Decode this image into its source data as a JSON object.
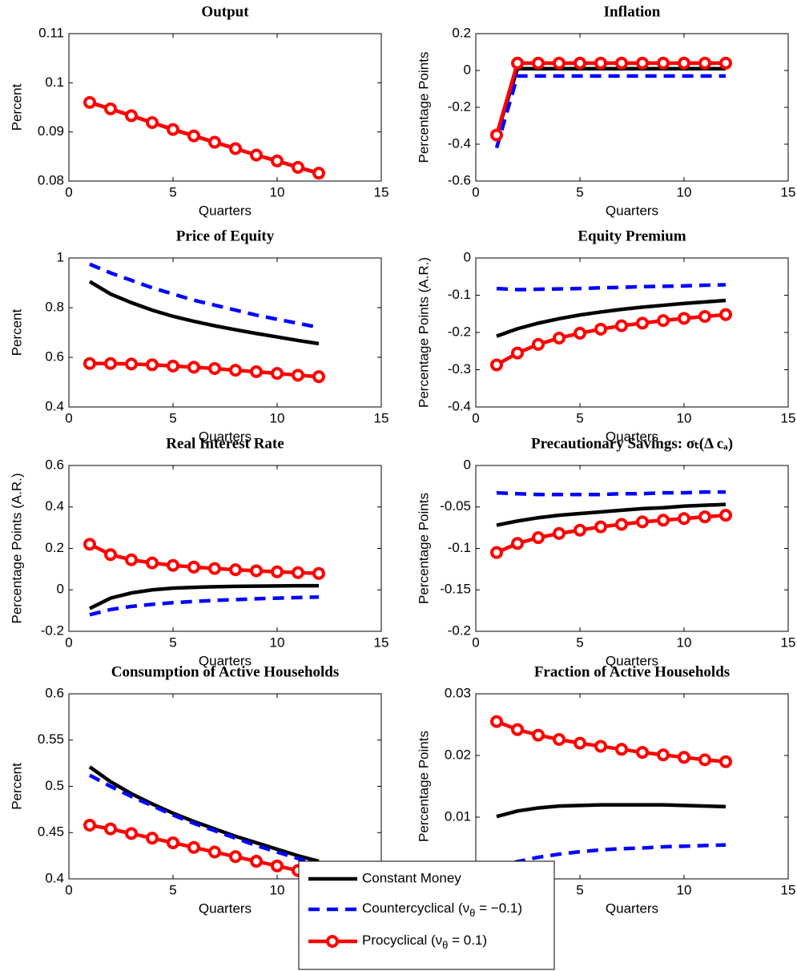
{
  "chart_data": [
    {
      "type": "line",
      "title": "Output",
      "ylabel": "Percent",
      "xlabel": "Quarters",
      "x": [
        1,
        2,
        3,
        4,
        5,
        6,
        7,
        8,
        9,
        10,
        11,
        12
      ],
      "xlim": [
        0,
        15
      ],
      "xticks": [
        0,
        5,
        10,
        15
      ],
      "ylim": [
        0.08,
        0.11
      ],
      "yticks": [
        0.08,
        0.09,
        0.1,
        0.11
      ],
      "series": [
        {
          "values": [
            0.096,
            0.0947,
            0.0933,
            0.0919,
            0.0905,
            0.0892,
            0.0879,
            0.0866,
            0.0853,
            0.0841,
            0.0828,
            0.0816
          ]
        },
        {
          "values": [
            0.096,
            0.0947,
            0.0933,
            0.0919,
            0.0905,
            0.0892,
            0.0879,
            0.0866,
            0.0853,
            0.0841,
            0.0828,
            0.0816
          ]
        },
        {
          "values": [
            0.096,
            0.0947,
            0.0933,
            0.0919,
            0.0905,
            0.0892,
            0.0879,
            0.0866,
            0.0853,
            0.0841,
            0.0828,
            0.0816
          ]
        }
      ]
    },
    {
      "type": "line",
      "title": "Inflation",
      "ylabel": "Percentage Points",
      "xlabel": "Quarters",
      "x": [
        1,
        2,
        3,
        4,
        5,
        6,
        7,
        8,
        9,
        10,
        11,
        12
      ],
      "xlim": [
        0,
        15
      ],
      "xticks": [
        0,
        5,
        10,
        15
      ],
      "ylim": [
        -0.6,
        0.2
      ],
      "yticks": [
        -0.6,
        -0.4,
        -0.2,
        0,
        0.2
      ],
      "series": [
        {
          "values": [
            -0.35,
            0.01,
            0.01,
            0.01,
            0.01,
            0.01,
            0.01,
            0.01,
            0.01,
            0.01,
            0.01,
            0.01
          ]
        },
        {
          "values": [
            -0.42,
            -0.03,
            -0.03,
            -0.03,
            -0.03,
            -0.03,
            -0.03,
            -0.03,
            -0.03,
            -0.03,
            -0.03,
            -0.03
          ]
        },
        {
          "values": [
            -0.35,
            0.04,
            0.04,
            0.04,
            0.04,
            0.04,
            0.04,
            0.04,
            0.04,
            0.04,
            0.04,
            0.04
          ]
        }
      ]
    },
    {
      "type": "line",
      "title": "Price of Equity",
      "ylabel": "Percent",
      "xlabel": "Quarters",
      "x": [
        1,
        2,
        3,
        4,
        5,
        6,
        7,
        8,
        9,
        10,
        11,
        12
      ],
      "xlim": [
        0,
        15
      ],
      "xticks": [
        0,
        5,
        10,
        15
      ],
      "ylim": [
        0.4,
        1
      ],
      "yticks": [
        0.4,
        0.6,
        0.8,
        1
      ],
      "series": [
        {
          "values": [
            0.905,
            0.855,
            0.82,
            0.79,
            0.765,
            0.745,
            0.727,
            0.711,
            0.696,
            0.682,
            0.668,
            0.655
          ]
        },
        {
          "values": [
            0.975,
            0.94,
            0.91,
            0.88,
            0.855,
            0.83,
            0.81,
            0.79,
            0.77,
            0.753,
            0.737,
            0.72
          ]
        },
        {
          "values": [
            0.575,
            0.575,
            0.573,
            0.57,
            0.565,
            0.56,
            0.555,
            0.548,
            0.542,
            0.535,
            0.528,
            0.522
          ]
        }
      ]
    },
    {
      "type": "line",
      "title": "Equity Premium",
      "ylabel": "Percentage Points (A.R.)",
      "xlabel": "Quarters",
      "x": [
        1,
        2,
        3,
        4,
        5,
        6,
        7,
        8,
        9,
        10,
        11,
        12
      ],
      "xlim": [
        0,
        15
      ],
      "xticks": [
        0,
        5,
        10,
        15
      ],
      "ylim": [
        -0.4,
        0
      ],
      "yticks": [
        -0.4,
        -0.3,
        -0.2,
        -0.1,
        0
      ],
      "series": [
        {
          "values": [
            -0.21,
            -0.19,
            -0.175,
            -0.163,
            -0.153,
            -0.145,
            -0.138,
            -0.132,
            -0.127,
            -0.122,
            -0.118,
            -0.114
          ]
        },
        {
          "values": [
            -0.082,
            -0.085,
            -0.084,
            -0.083,
            -0.082,
            -0.08,
            -0.079,
            -0.077,
            -0.076,
            -0.075,
            -0.073,
            -0.072
          ]
        },
        {
          "values": [
            -0.287,
            -0.255,
            -0.232,
            -0.215,
            -0.202,
            -0.191,
            -0.182,
            -0.175,
            -0.168,
            -0.162,
            -0.157,
            -0.152
          ]
        }
      ]
    },
    {
      "type": "line",
      "title": "Real Interest Rate",
      "ylabel": "Percentage Points (A.R.)",
      "xlabel": "Quarters",
      "x": [
        1,
        2,
        3,
        4,
        5,
        6,
        7,
        8,
        9,
        10,
        11,
        12
      ],
      "xlim": [
        0,
        15
      ],
      "xticks": [
        0,
        5,
        10,
        15
      ],
      "ylim": [
        -0.2,
        0.6
      ],
      "yticks": [
        -0.2,
        0,
        0.2,
        0.4,
        0.6
      ],
      "series": [
        {
          "values": [
            -0.09,
            -0.04,
            -0.015,
            0,
            0.008,
            0.012,
            0.015,
            0.017,
            0.018,
            0.019,
            0.02,
            0.02
          ]
        },
        {
          "values": [
            -0.12,
            -0.095,
            -0.08,
            -0.07,
            -0.062,
            -0.056,
            -0.051,
            -0.047,
            -0.043,
            -0.04,
            -0.037,
            -0.035
          ]
        },
        {
          "values": [
            0.22,
            0.17,
            0.145,
            0.13,
            0.118,
            0.11,
            0.103,
            0.097,
            0.092,
            0.087,
            0.083,
            0.079
          ]
        }
      ]
    },
    {
      "type": "line",
      "title": "Precautionary Savings:  σₜ(Δ cₐ)",
      "ylabel": "Percentage Points",
      "xlabel": "Quarters",
      "x": [
        1,
        2,
        3,
        4,
        5,
        6,
        7,
        8,
        9,
        10,
        11,
        12
      ],
      "xlim": [
        0,
        15
      ],
      "xticks": [
        0,
        5,
        10,
        15
      ],
      "ylim": [
        -0.2,
        0
      ],
      "yticks": [
        -0.2,
        -0.15,
        -0.1,
        -0.05,
        0
      ],
      "series": [
        {
          "values": [
            -0.072,
            -0.067,
            -0.063,
            -0.06,
            -0.058,
            -0.056,
            -0.054,
            -0.052,
            -0.051,
            -0.049,
            -0.048,
            -0.047
          ]
        },
        {
          "values": [
            -0.033,
            -0.034,
            -0.035,
            -0.035,
            -0.035,
            -0.035,
            -0.034,
            -0.034,
            -0.033,
            -0.033,
            -0.032,
            -0.032
          ]
        },
        {
          "values": [
            -0.105,
            -0.094,
            -0.087,
            -0.082,
            -0.078,
            -0.074,
            -0.071,
            -0.068,
            -0.066,
            -0.064,
            -0.062,
            -0.06
          ]
        }
      ]
    },
    {
      "type": "line",
      "title": "Consumption of Active Households",
      "ylabel": "Percent",
      "xlabel": "Quarters",
      "x": [
        1,
        2,
        3,
        4,
        5,
        6,
        7,
        8,
        9,
        10,
        11,
        12
      ],
      "xlim": [
        0,
        15
      ],
      "xticks": [
        0,
        5,
        10,
        15
      ],
      "ylim": [
        0.4,
        0.6
      ],
      "yticks": [
        0.4,
        0.45,
        0.5,
        0.55,
        0.6
      ],
      "series": [
        {
          "values": [
            0.521,
            0.505,
            0.492,
            0.481,
            0.471,
            0.462,
            0.454,
            0.446,
            0.439,
            0.432,
            0.425,
            0.419
          ]
        },
        {
          "values": [
            0.512,
            0.5,
            0.489,
            0.479,
            0.469,
            0.46,
            0.452,
            0.444,
            0.436,
            0.429,
            0.422,
            0.415
          ]
        },
        {
          "values": [
            0.458,
            0.454,
            0.449,
            0.444,
            0.439,
            0.434,
            0.429,
            0.424,
            0.419,
            0.414,
            0.409,
            0.404
          ]
        }
      ]
    },
    {
      "type": "line",
      "title": "Fraction of Active Households",
      "ylabel": "Percentage Points",
      "xlabel": "Quarters",
      "x": [
        1,
        2,
        3,
        4,
        5,
        6,
        7,
        8,
        9,
        10,
        11,
        12
      ],
      "xlim": [
        0,
        15
      ],
      "xticks": [
        0,
        5,
        10,
        15
      ],
      "ylim": [
        0,
        0.03
      ],
      "yticks": [
        0,
        0.01,
        0.02,
        0.03
      ],
      "series": [
        {
          "values": [
            0.0101,
            0.011,
            0.0115,
            0.0118,
            0.0119,
            0.012,
            0.012,
            0.012,
            0.012,
            0.0119,
            0.0118,
            0.0117
          ]
        },
        {
          "values": [
            0.0018,
            0.0028,
            0.0035,
            0.004,
            0.0044,
            0.0047,
            0.0049,
            0.005,
            0.0052,
            0.0053,
            0.0054,
            0.0055
          ]
        },
        {
          "values": [
            0.0255,
            0.0242,
            0.0233,
            0.0226,
            0.022,
            0.0215,
            0.021,
            0.0205,
            0.0201,
            0.0197,
            0.0193,
            0.019
          ]
        }
      ]
    }
  ],
  "legend": {
    "series": [
      {
        "name": "Constant Money",
        "color": "#000000",
        "line_style": "solid",
        "marker": "none"
      },
      {
        "name": "Countercyclical (νθ = −0.1)",
        "color": "#0000ff",
        "line_style": "dashed",
        "marker": "none"
      },
      {
        "name": "Procyclical (νθ = 0.1)",
        "color": "#ff0000",
        "line_style": "solid",
        "marker": "circle"
      }
    ]
  }
}
